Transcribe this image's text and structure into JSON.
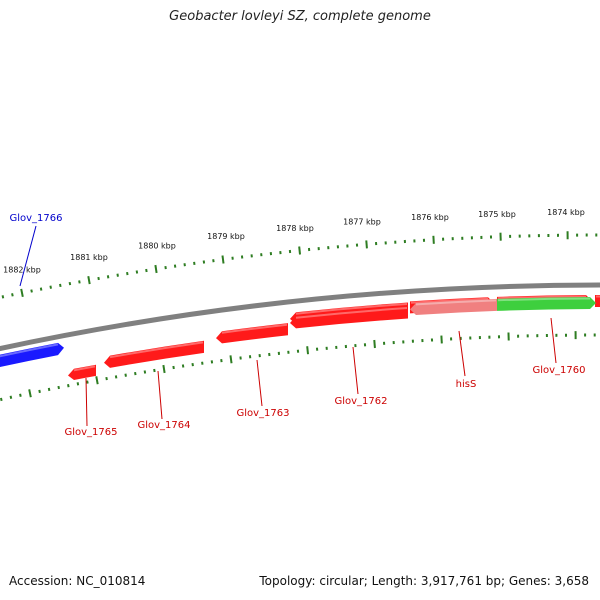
{
  "title": "Geobacter lovleyi SZ, complete genome",
  "footer": {
    "accession": "Accession: NC_010814",
    "summary": "Topology: circular; Length: 3,917,761 bp; Genes: 3,658"
  },
  "colors": {
    "background": "#ffffff",
    "backbone": "#808080",
    "tick": "#2e7d22",
    "gene_forward": "#ff1a1a",
    "gene_highlight": "#1a1aff",
    "gene_rna": "#3ecf3e",
    "gene_pseudo": "#f08080",
    "label_red": "#cc0000",
    "label_blue": "#0000cc"
  },
  "ticks": [
    {
      "label": "1882 kbp"
    },
    {
      "label": "1881 kbp"
    },
    {
      "label": "1880 kbp"
    },
    {
      "label": "1879 kbp"
    },
    {
      "label": "1878 kbp"
    },
    {
      "label": "1877 kbp"
    },
    {
      "label": "1876 kbp"
    },
    {
      "label": "1875 kbp"
    },
    {
      "label": "1874 kbp"
    }
  ],
  "gene_labels": [
    {
      "name": "Glov_1766",
      "color": "blue"
    },
    {
      "name": "Glov_1765",
      "color": "red"
    },
    {
      "name": "Glov_1764",
      "color": "red"
    },
    {
      "name": "Glov_1763",
      "color": "red"
    },
    {
      "name": "Glov_1762",
      "color": "red"
    },
    {
      "name": "hisS",
      "color": "red"
    },
    {
      "name": "Glov_1760",
      "color": "red"
    }
  ]
}
